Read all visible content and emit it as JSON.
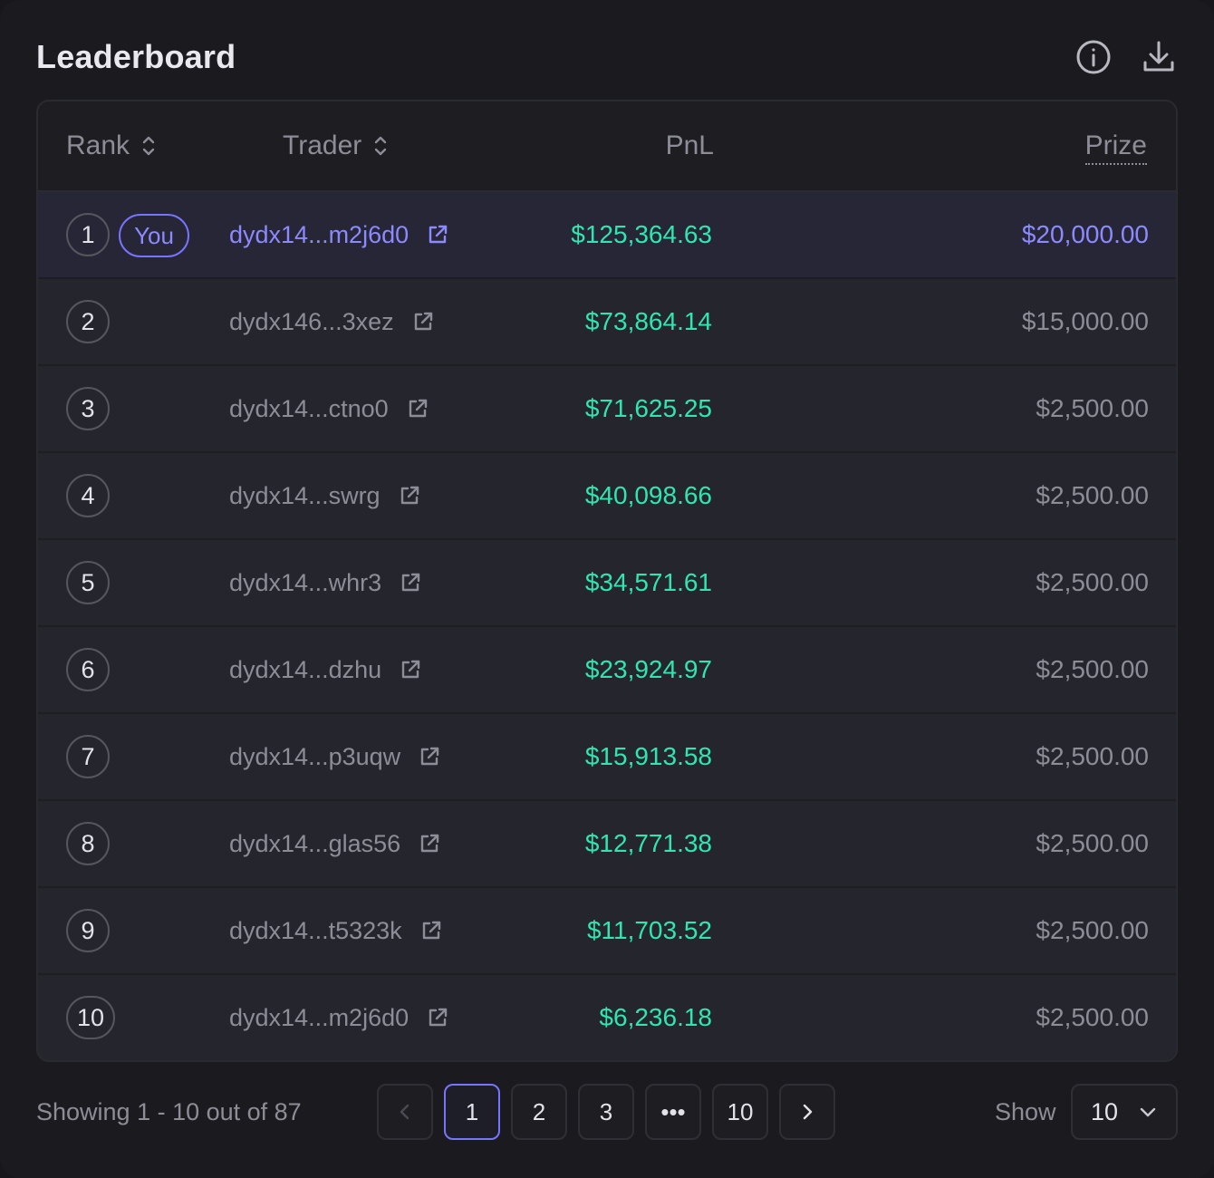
{
  "header": {
    "title": "Leaderboard",
    "info_icon": "info-icon",
    "download_icon": "download-icon"
  },
  "table": {
    "columns": {
      "rank": "Rank",
      "trader": "Trader",
      "pnl": "PnL",
      "prize": "Prize"
    },
    "you_label": "You",
    "rows": [
      {
        "rank": "1",
        "trader": "dydx14...m2j6d0",
        "pnl": "$125,364.63",
        "prize": "$20,000.00",
        "is_you": true
      },
      {
        "rank": "2",
        "trader": "dydx146...3xez",
        "pnl": "$73,864.14",
        "prize": "$15,000.00",
        "is_you": false
      },
      {
        "rank": "3",
        "trader": "dydx14...ctno0",
        "pnl": "$71,625.25",
        "prize": "$2,500.00",
        "is_you": false
      },
      {
        "rank": "4",
        "trader": "dydx14...swrg",
        "pnl": "$40,098.66",
        "prize": "$2,500.00",
        "is_you": false
      },
      {
        "rank": "5",
        "trader": "dydx14...whr3",
        "pnl": "$34,571.61",
        "prize": "$2,500.00",
        "is_you": false
      },
      {
        "rank": "6",
        "trader": "dydx14...dzhu",
        "pnl": "$23,924.97",
        "prize": "$2,500.00",
        "is_you": false
      },
      {
        "rank": "7",
        "trader": "dydx14...p3uqw",
        "pnl": "$15,913.58",
        "prize": "$2,500.00",
        "is_you": false
      },
      {
        "rank": "8",
        "trader": "dydx14...glas56",
        "pnl": "$12,771.38",
        "prize": "$2,500.00",
        "is_you": false
      },
      {
        "rank": "9",
        "trader": "dydx14...t5323k",
        "pnl": "$11,703.52",
        "prize": "$2,500.00",
        "is_you": false
      },
      {
        "rank": "10",
        "trader": "dydx14...m2j6d0",
        "pnl": "$6,236.18",
        "prize": "$2,500.00",
        "is_you": false
      }
    ]
  },
  "footer": {
    "showing_text": "Showing 1 - 10 out of 87",
    "pages": [
      "1",
      "2",
      "3",
      "•••",
      "10"
    ],
    "active_page": "1",
    "show_label": "Show",
    "page_size": "10"
  },
  "colors": {
    "accent": "#7774ff",
    "pnl_positive": "#2fe6b0",
    "muted_text": "#8d8d97"
  }
}
